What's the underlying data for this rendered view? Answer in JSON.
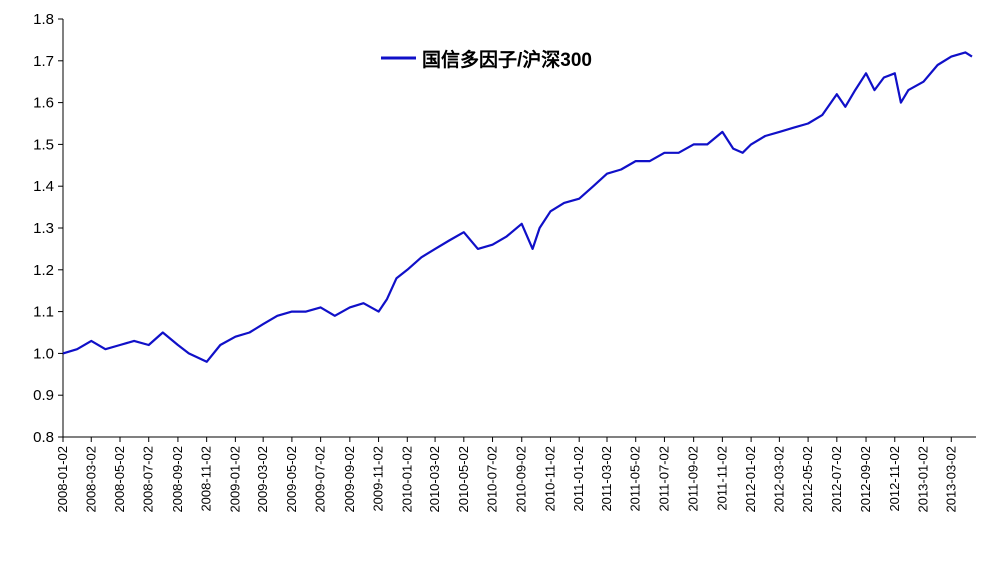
{
  "chart_data": {
    "type": "line",
    "title": "",
    "xlabel": "",
    "ylabel": "",
    "ylim": [
      0.8,
      1.8
    ],
    "yticks": [
      "0.8",
      "0.9",
      "1.0",
      "1.1",
      "1.2",
      "1.3",
      "1.4",
      "1.5",
      "1.6",
      "1.7",
      "1.8"
    ],
    "xticks": [
      "2008-01-02",
      "2008-03-02",
      "2008-05-02",
      "2008-07-02",
      "2008-09-02",
      "2008-11-02",
      "2009-01-02",
      "2009-03-02",
      "2009-05-02",
      "2009-07-02",
      "2009-09-02",
      "2009-11-02",
      "2010-01-02",
      "2010-03-02",
      "2010-05-02",
      "2010-07-02",
      "2010-09-02",
      "2010-11-02",
      "2011-01-02",
      "2011-03-02",
      "2011-05-02",
      "2011-07-02",
      "2011-09-02",
      "2011-11-02",
      "2012-01-02",
      "2012-03-02",
      "2012-05-02",
      "2012-07-02",
      "2012-09-02",
      "2012-11-02",
      "2013-01-02",
      "2013-03-02"
    ],
    "grid": false,
    "legend_position": "top-center",
    "series": [
      {
        "name": "国信多因子/沪深300",
        "color": "#1010c8",
        "x": [
          "2008-01-02",
          "2008-02-01",
          "2008-03-02",
          "2008-04-01",
          "2008-05-02",
          "2008-06-01",
          "2008-07-02",
          "2008-08-01",
          "2008-09-02",
          "2008-09-25",
          "2008-11-02",
          "2008-12-01",
          "2009-01-02",
          "2009-02-01",
          "2009-03-02",
          "2009-04-01",
          "2009-05-02",
          "2009-06-01",
          "2009-07-02",
          "2009-08-01",
          "2009-09-02",
          "2009-10-01",
          "2009-11-02",
          "2009-11-20",
          "2009-12-10",
          "2010-01-02",
          "2010-02-01",
          "2010-03-02",
          "2010-04-01",
          "2010-05-02",
          "2010-06-01",
          "2010-07-02",
          "2010-08-01",
          "2010-09-02",
          "2010-09-25",
          "2010-10-10",
          "2010-11-02",
          "2010-12-01",
          "2011-01-02",
          "2011-02-01",
          "2011-03-02",
          "2011-04-01",
          "2011-05-02",
          "2011-06-01",
          "2011-07-02",
          "2011-08-01",
          "2011-09-02",
          "2011-10-01",
          "2011-11-02",
          "2011-11-25",
          "2011-12-15",
          "2012-01-02",
          "2012-02-01",
          "2012-03-02",
          "2012-04-01",
          "2012-05-02",
          "2012-06-01",
          "2012-07-02",
          "2012-07-20",
          "2012-08-10",
          "2012-09-02",
          "2012-09-20",
          "2012-10-10",
          "2012-11-02",
          "2012-11-15",
          "2012-12-01",
          "2013-01-02",
          "2013-02-01",
          "2013-03-02",
          "2013-04-01",
          "2013-04-15"
        ],
        "values": [
          1.0,
          1.01,
          1.03,
          1.01,
          1.02,
          1.03,
          1.02,
          1.05,
          1.02,
          1.0,
          0.98,
          1.02,
          1.04,
          1.05,
          1.07,
          1.09,
          1.1,
          1.1,
          1.11,
          1.09,
          1.11,
          1.12,
          1.1,
          1.13,
          1.18,
          1.2,
          1.23,
          1.25,
          1.27,
          1.29,
          1.25,
          1.26,
          1.28,
          1.31,
          1.25,
          1.3,
          1.34,
          1.36,
          1.37,
          1.4,
          1.43,
          1.44,
          1.46,
          1.46,
          1.48,
          1.48,
          1.5,
          1.5,
          1.53,
          1.49,
          1.48,
          1.5,
          1.52,
          1.53,
          1.54,
          1.55,
          1.57,
          1.62,
          1.59,
          1.63,
          1.67,
          1.63,
          1.66,
          1.67,
          1.6,
          1.63,
          1.65,
          1.69,
          1.71,
          1.72,
          1.71
        ]
      }
    ]
  }
}
